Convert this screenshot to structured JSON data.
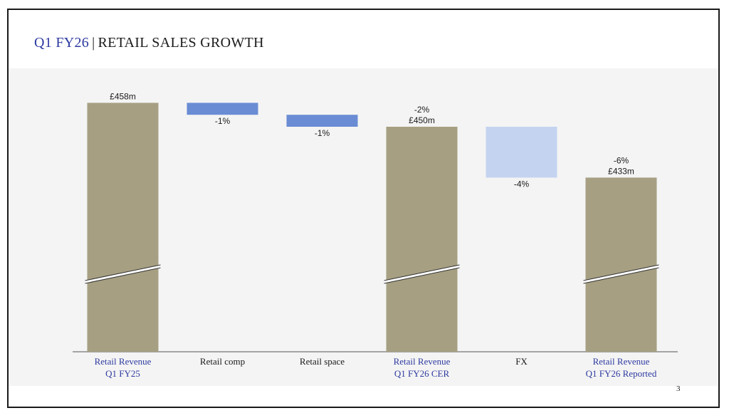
{
  "header": {
    "title_accent": "Q1 FY26",
    "separator": "|",
    "title_main": "RETAIL SALES GROWTH"
  },
  "footer": {
    "page_number": "3"
  },
  "colors": {
    "total": "#a69f82",
    "negative": "#6a8cd4",
    "fx": "#c4d3f0",
    "category_accent": "#2d3aa0",
    "category_default": "#1a1a1a"
  },
  "chart_data": {
    "type": "waterfall",
    "title": "Q1 FY26 | RETAIL SALES GROWTH",
    "unit": "£m",
    "axis_break": true,
    "ylim": [
      400,
      460
    ],
    "bars": [
      {
        "category": [
          "Retail Revenue",
          "Q1 FY25"
        ],
        "kind": "total",
        "start": 0,
        "end": 458,
        "label": "£458m",
        "pct_label": "",
        "accent": true
      },
      {
        "category": [
          "Retail comp"
        ],
        "kind": "delta",
        "start": 458,
        "end": 454,
        "label": "-1%",
        "pct_label": "",
        "accent": false
      },
      {
        "category": [
          "Retail space"
        ],
        "kind": "delta",
        "start": 454,
        "end": 450,
        "label": "-1%",
        "pct_label": "",
        "accent": false
      },
      {
        "category": [
          "Retail Revenue",
          "Q1 FY26 CER"
        ],
        "kind": "total",
        "start": 0,
        "end": 450,
        "label": "£450m",
        "pct_label": "-2%",
        "accent": true
      },
      {
        "category": [
          "FX"
        ],
        "kind": "fx",
        "start": 450,
        "end": 433,
        "label": "-4%",
        "pct_label": "",
        "accent": false
      },
      {
        "category": [
          "Retail Revenue",
          "Q1 FY26 Reported"
        ],
        "kind": "total",
        "start": 0,
        "end": 433,
        "label": "£433m",
        "pct_label": "-6%",
        "accent": true
      }
    ]
  }
}
